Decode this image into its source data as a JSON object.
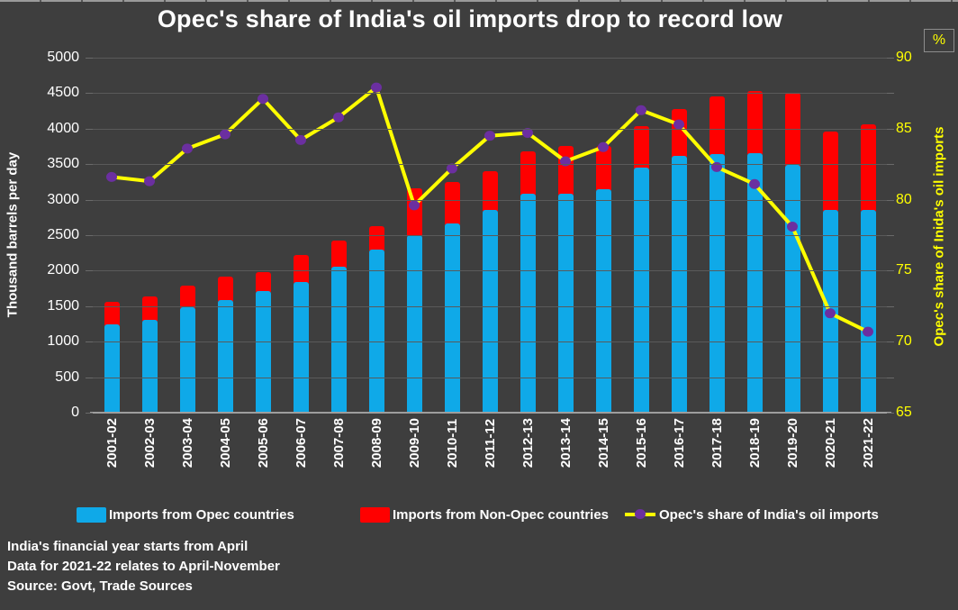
{
  "title": "Opec's share of India's oil imports drop to record low",
  "footnotes": [
    "India's financial year starts from April",
    "Data for 2021-22 relates to April-November",
    "Source: Govt, Trade Sources"
  ],
  "colors": {
    "background": "#3e3e3e",
    "opec_bar": "#0fa9e8",
    "non_opec_bar": "#ff0000",
    "share_line": "#ffff00",
    "share_marker": "#6b2fa0",
    "gridline": "#5a5a5a",
    "axis_line": "#9e9e9e",
    "left_text": "#ffffff",
    "right_text": "#ffff00"
  },
  "chart_data": {
    "type": "bar",
    "subtype": "stacked-bars-with-line-overlay",
    "grid": true,
    "legend_position": "bottom",
    "categories": [
      "2001-02",
      "2002-03",
      "2003-04",
      "2004-05",
      "2005-06",
      "2006-07",
      "2007-08",
      "2008-09",
      "2009-10",
      "2010-11",
      "2011-12",
      "2012-13",
      "2013-14",
      "2014-15",
      "2015-16",
      "2016-17",
      "2017-18",
      "2018-19",
      "2019-20",
      "2020-21",
      "2021-22"
    ],
    "left_axis": {
      "title": "Thousand barrels per day",
      "min": 0,
      "max": 5000,
      "step": 500,
      "label_step": 500
    },
    "right_axis": {
      "title": "Opec's share of Inida's oil imports",
      "unit": "%",
      "min": 65,
      "max": 90,
      "step": 5
    },
    "series": [
      {
        "name": "Imports from Opec countries",
        "type": "bar",
        "stack": "imports",
        "axis": "left",
        "color": "#0fa9e8",
        "values": [
          1250,
          1310,
          1480,
          1590,
          1710,
          1840,
          2050,
          2300,
          2500,
          2660,
          2850,
          3080,
          3090,
          3150,
          3450,
          3620,
          3640,
          3650,
          3490,
          2850,
          2860
        ]
      },
      {
        "name": "Imports from Non-Opec countries",
        "type": "bar",
        "stack": "imports",
        "axis": "left",
        "color": "#ff0000",
        "values": [
          350,
          360,
          350,
          360,
          310,
          420,
          410,
          370,
          700,
          630,
          590,
          640,
          710,
          640,
          630,
          690,
          850,
          920,
          1050,
          1150,
          1240
        ]
      },
      {
        "name": "Opec's share of India's oil imports",
        "type": "line",
        "axis": "right",
        "color": "#ffff00",
        "marker_color": "#6b2fa0",
        "values": [
          81.6,
          81.3,
          83.6,
          84.6,
          87.1,
          84.2,
          85.8,
          87.9,
          79.6,
          82.2,
          84.5,
          84.7,
          82.7,
          83.7,
          86.3,
          85.3,
          82.3,
          81.1,
          78.1,
          72.0,
          70.7
        ]
      }
    ]
  }
}
